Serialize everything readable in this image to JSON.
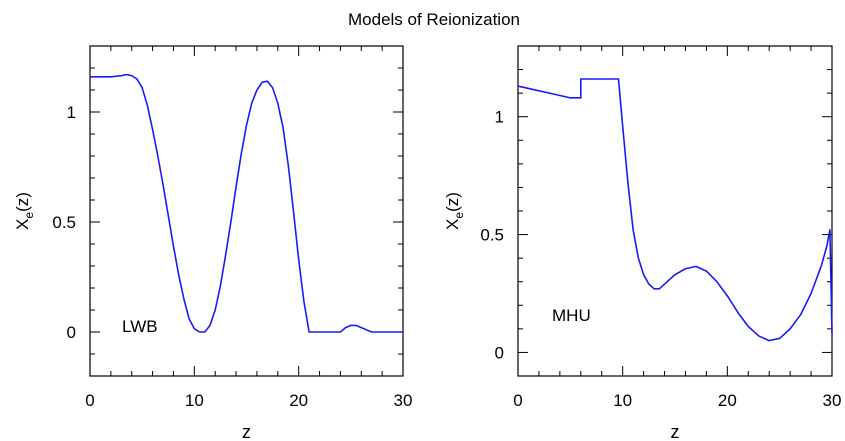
{
  "figure_title": "Models of Reionization",
  "chart_data": [
    {
      "type": "line",
      "label": "LWB",
      "xlabel": "z",
      "ylabel_main": "X",
      "ylabel_sub": "e",
      "ylabel_tail": "(z)",
      "xlim": [
        0,
        30
      ],
      "ylim": [
        -0.2,
        1.3
      ],
      "xticks": [
        0,
        10,
        20,
        30
      ],
      "yticks": [
        0,
        0.5,
        1
      ],
      "ytick_labels": [
        "0",
        "0.5",
        "1"
      ],
      "line_color": "#1a1aff",
      "series": [
        {
          "x": [
            0,
            1,
            2,
            3,
            3.5,
            4,
            4.5,
            5,
            5.5,
            6,
            6.5,
            7,
            7.5,
            8,
            8.5,
            9,
            9.5,
            10,
            10.5,
            11,
            11.5,
            12,
            12.5,
            13,
            13.5,
            14,
            14.5,
            15,
            15.5,
            16,
            16.5,
            17,
            17.5,
            18,
            18.5,
            19,
            19.5,
            20,
            20.5,
            21,
            22,
            23,
            24,
            24.5,
            25,
            25.5,
            26,
            26.5,
            27,
            28,
            29,
            30
          ],
          "y": [
            1.16,
            1.16,
            1.16,
            1.165,
            1.17,
            1.165,
            1.15,
            1.11,
            1.03,
            0.92,
            0.8,
            0.67,
            0.53,
            0.39,
            0.26,
            0.15,
            0.06,
            0.015,
            0.0,
            0.0,
            0.03,
            0.1,
            0.21,
            0.35,
            0.5,
            0.66,
            0.81,
            0.94,
            1.04,
            1.1,
            1.135,
            1.14,
            1.11,
            1.04,
            0.93,
            0.76,
            0.55,
            0.33,
            0.14,
            0.0,
            0.0,
            0.0,
            0.0,
            0.02,
            0.03,
            0.03,
            0.02,
            0.01,
            0.0,
            0.0,
            0.0,
            0.0
          ]
        }
      ]
    },
    {
      "type": "line",
      "label": "MHU",
      "xlabel": "z",
      "ylabel_main": "X",
      "ylabel_sub": "e",
      "ylabel_tail": "(z)",
      "xlim": [
        0,
        30
      ],
      "ylim": [
        -0.1,
        1.3
      ],
      "xticks": [
        0,
        10,
        20,
        30
      ],
      "yticks": [
        0,
        0.5,
        1
      ],
      "ytick_labels": [
        "0",
        "0.5",
        "1"
      ],
      "line_color": "#1a1aff",
      "series": [
        {
          "x": [
            0,
            1,
            2,
            3,
            4,
            5,
            5.5,
            6,
            6,
            6.5,
            7,
            8,
            9,
            9.6,
            10,
            10.5,
            11,
            11.5,
            12,
            12.5,
            13,
            13.5,
            14,
            15,
            16,
            17,
            18,
            19,
            20,
            21,
            22,
            23,
            24,
            25,
            26,
            27,
            28,
            29,
            29.5,
            29.8,
            30
          ],
          "y": [
            1.13,
            1.12,
            1.11,
            1.1,
            1.09,
            1.08,
            1.08,
            1.08,
            1.16,
            1.16,
            1.16,
            1.16,
            1.16,
            1.16,
            0.96,
            0.72,
            0.52,
            0.4,
            0.33,
            0.29,
            0.27,
            0.27,
            0.29,
            0.33,
            0.355,
            0.365,
            0.345,
            0.3,
            0.24,
            0.17,
            0.11,
            0.07,
            0.05,
            0.06,
            0.1,
            0.16,
            0.25,
            0.37,
            0.45,
            0.52,
            0.08
          ]
        }
      ]
    }
  ]
}
